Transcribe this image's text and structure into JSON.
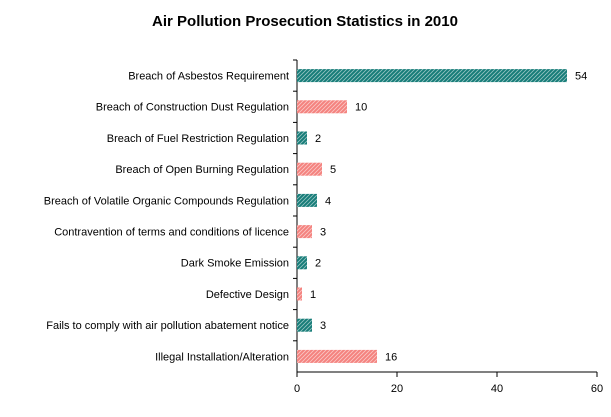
{
  "chart_data": {
    "type": "hbar",
    "title": "Air Pollution Prosecution Statistics in 2010",
    "categories": [
      "Breach of Asbestos Requirement",
      "Breach of Construction Dust Regulation",
      "Breach of Fuel Restriction Regulation",
      "Breach of Open Burning Regulation",
      "Breach of Volatile Organic Compounds Regulation",
      "Contravention of terms and conditions of licence",
      "Dark Smoke Emission",
      "Defective Design",
      "Fails to comply with air pollution abatement notice",
      "Illegal Installation/Alteration"
    ],
    "values": [
      54,
      10,
      2,
      5,
      4,
      3,
      2,
      1,
      3,
      16
    ],
    "colors": [
      "#167c78",
      "#f4827e",
      "#167c78",
      "#f4827e",
      "#167c78",
      "#f4827e",
      "#167c78",
      "#f4827e",
      "#167c78",
      "#f4827e"
    ],
    "xlim": [
      0,
      60
    ],
    "xticks": [
      0,
      20,
      40,
      60
    ],
    "grid": false
  }
}
